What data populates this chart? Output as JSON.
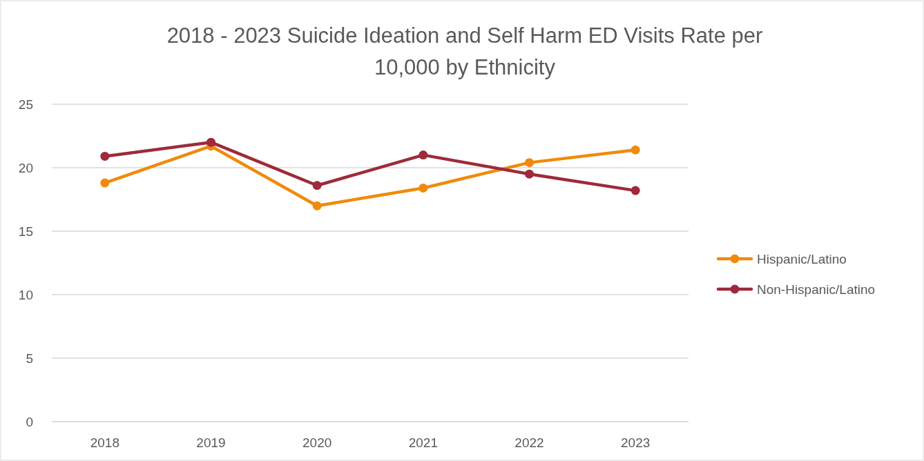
{
  "chart_data": {
    "type": "line",
    "title": "2018 - 2023 Suicide Ideation and Self Harm ED Visits Rate per 10,000 by Ethnicity",
    "categories": [
      "2018",
      "2019",
      "2020",
      "2021",
      "2022",
      "2023"
    ],
    "series": [
      {
        "name": "Hispanic/Latino",
        "color": "#f08a0c",
        "values": [
          18.8,
          21.7,
          17.0,
          18.4,
          20.4,
          21.4
        ]
      },
      {
        "name": "Non-Hispanic/Latino",
        "color": "#9e2a3a",
        "values": [
          20.9,
          22.0,
          18.6,
          21.0,
          19.5,
          18.2
        ]
      }
    ],
    "ylim": [
      0,
      25
    ],
    "yticks": [
      0,
      5,
      10,
      15,
      20,
      25
    ],
    "grid": "y",
    "legend": "right",
    "marker": "circle",
    "line_style": "solid"
  }
}
